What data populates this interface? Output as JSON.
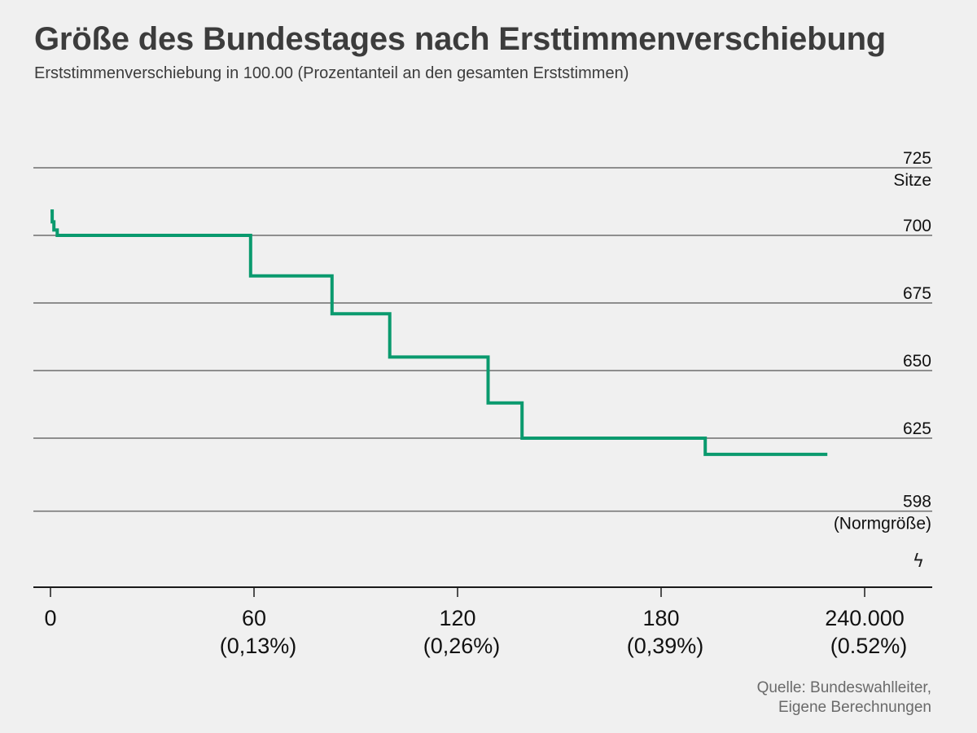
{
  "title": "Größe des Bundestages nach Ersttimmenverschiebung",
  "subtitle": "Erststimmenverschiebung in 100.00 (Prozentanteil an den gesamten Erststimmen)",
  "source": {
    "line1": "Quelle: Bundeswahlleiter,",
    "line2": "Eigene Berechnungen"
  },
  "axis_break_symbol": "ϟ",
  "colors": {
    "line": "#0a9a6e",
    "grid": "#6e6e6e",
    "axis": "#1a1a1a",
    "background": "#f0f0f0"
  },
  "chart_data": {
    "type": "line",
    "step": true,
    "xlim": [
      0,
      262
    ],
    "ylim": [
      570,
      729
    ],
    "y_ticks": [
      {
        "value": 725,
        "label": "725",
        "sublabel": "Sitze"
      },
      {
        "value": 700,
        "label": "700",
        "sublabel": ""
      },
      {
        "value": 675,
        "label": "675",
        "sublabel": ""
      },
      {
        "value": 650,
        "label": "650",
        "sublabel": ""
      },
      {
        "value": 625,
        "label": "625",
        "sublabel": ""
      },
      {
        "value": 598,
        "label": "598",
        "sublabel": "(Normgröße)"
      }
    ],
    "x_ticks": [
      {
        "value": 0,
        "label": "0",
        "sublabel": ""
      },
      {
        "value": 60,
        "label": "60",
        "sublabel": "(0,13%)"
      },
      {
        "value": 120,
        "label": "120",
        "sublabel": "(0,26%)"
      },
      {
        "value": 180,
        "label": "180",
        "sublabel": "(0,39%)"
      },
      {
        "value": 240,
        "label": "240.000",
        "sublabel": "(0.52%)"
      }
    ],
    "series": [
      {
        "points": [
          [
            0,
            709
          ],
          [
            0.5,
            709
          ],
          [
            0.5,
            705
          ],
          [
            1,
            705
          ],
          [
            1,
            702
          ],
          [
            2,
            702
          ],
          [
            2,
            700
          ],
          [
            59,
            700
          ],
          [
            59,
            685
          ],
          [
            83,
            685
          ],
          [
            83,
            671
          ],
          [
            100,
            671
          ],
          [
            100,
            655
          ],
          [
            129,
            655
          ],
          [
            129,
            638
          ],
          [
            139,
            638
          ],
          [
            139,
            625
          ],
          [
            193,
            625
          ],
          [
            193,
            619
          ],
          [
            229,
            619
          ]
        ]
      }
    ]
  }
}
